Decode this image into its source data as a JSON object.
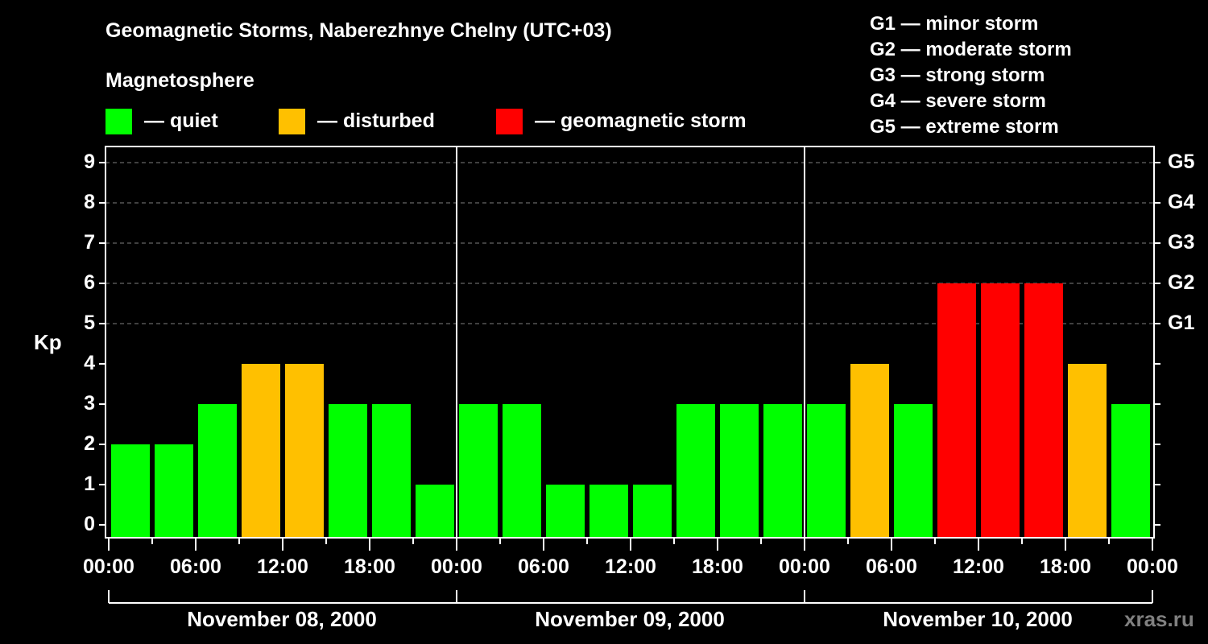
{
  "header": {
    "title": "Geomagnetic Storms, Naberezhnye Chelny (UTC+03)",
    "subtitle": "Magnetosphere"
  },
  "legend": {
    "items": [
      {
        "label": "— quiet",
        "color": "#00FF00"
      },
      {
        "label": "— disturbed",
        "color": "#FFC000"
      },
      {
        "label": "— geomagnetic storm",
        "color": "#FF0000"
      }
    ]
  },
  "g_scale": {
    "items": [
      "G1 — minor storm",
      "G2 — moderate storm",
      "G3 — strong storm",
      "G4 — severe storm",
      "G5 — extreme storm"
    ]
  },
  "axes": {
    "y_label": "Kp",
    "y_ticks": [
      "0",
      "1",
      "2",
      "3",
      "4",
      "5",
      "6",
      "7",
      "8",
      "9"
    ],
    "g_ticks": [
      "G1",
      "G2",
      "G3",
      "G4",
      "G5"
    ],
    "x_ticks": [
      "00:00",
      "06:00",
      "12:00",
      "18:00",
      "00:00",
      "06:00",
      "12:00",
      "18:00",
      "00:00",
      "06:00",
      "12:00",
      "18:00",
      "00:00"
    ],
    "days": [
      "November 08, 2000",
      "November 09, 2000",
      "November 10, 2000"
    ]
  },
  "watermark": "xras.ru",
  "chart_data": {
    "type": "bar",
    "title": "Geomagnetic Storms, Naberezhnye Chelny (UTC+03)",
    "subtitle": "Magnetosphere",
    "xlabel": "",
    "ylabel": "Kp",
    "ylim": [
      0,
      9
    ],
    "grid": "dashed horizontal at Kp 5-9",
    "secondary_y_ticks": {
      "5": "G1",
      "6": "G2",
      "7": "G3",
      "8": "G4",
      "9": "G5"
    },
    "categories": [
      "Nov 08 00:00",
      "Nov 08 03:00",
      "Nov 08 06:00",
      "Nov 08 09:00",
      "Nov 08 12:00",
      "Nov 08 15:00",
      "Nov 08 18:00",
      "Nov 08 21:00",
      "Nov 09 00:00",
      "Nov 09 03:00",
      "Nov 09 06:00",
      "Nov 09 09:00",
      "Nov 09 12:00",
      "Nov 09 15:00",
      "Nov 09 18:00",
      "Nov 09 21:00",
      "Nov 10 00:00",
      "Nov 10 03:00",
      "Nov 10 06:00",
      "Nov 10 09:00",
      "Nov 10 12:00",
      "Nov 10 15:00",
      "Nov 10 18:00",
      "Nov 10 21:00"
    ],
    "values": [
      2,
      2,
      3,
      4,
      4,
      3,
      3,
      1,
      3,
      3,
      1,
      1,
      1,
      3,
      3,
      3,
      3,
      4,
      3,
      6,
      6,
      6,
      4,
      3
    ],
    "bar_status": [
      "quiet",
      "quiet",
      "quiet",
      "disturbed",
      "disturbed",
      "quiet",
      "quiet",
      "quiet",
      "quiet",
      "quiet",
      "quiet",
      "quiet",
      "quiet",
      "quiet",
      "quiet",
      "quiet",
      "quiet",
      "disturbed",
      "quiet",
      "storm",
      "storm",
      "storm",
      "disturbed",
      "quiet"
    ],
    "colors": {
      "quiet": "#00FF00",
      "disturbed": "#FFC000",
      "storm": "#FF0000"
    },
    "legend": [
      "quiet",
      "disturbed",
      "geomagnetic storm"
    ],
    "legend_position": "top"
  }
}
